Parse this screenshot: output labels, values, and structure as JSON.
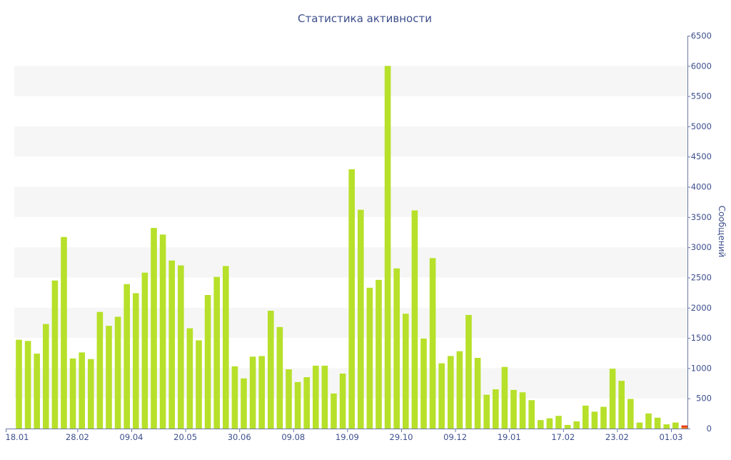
{
  "chart_data": {
    "type": "bar",
    "title": "Статистика активности",
    "xlabel": "",
    "ylabel": "Сообщений",
    "ylim": [
      0,
      6500
    ],
    "yticks": [
      0,
      500,
      1000,
      1500,
      2000,
      2500,
      3000,
      3500,
      4000,
      4500,
      5000,
      5500,
      6000,
      6500
    ],
    "y_axis_side": "right",
    "grid": "alternating horizontal bands",
    "x_tick_labels": [
      {
        "label": "18.01",
        "index": 0
      },
      {
        "label": "28.02",
        "index": 6
      },
      {
        "label": "09.04",
        "index": 12
      },
      {
        "label": "20.05",
        "index": 18
      },
      {
        "label": "30.06",
        "index": 24
      },
      {
        "label": "09.08",
        "index": 30
      },
      {
        "label": "19.09",
        "index": 36
      },
      {
        "label": "29.10",
        "index": 42
      },
      {
        "label": "09.12",
        "index": 48
      },
      {
        "label": "19.01",
        "index": 54
      },
      {
        "label": "17.02",
        "index": 60
      },
      {
        "label": "23.02",
        "index": 66
      },
      {
        "label": "01.03",
        "index": 72
      }
    ],
    "values": [
      1470,
      1450,
      1240,
      1730,
      2450,
      3170,
      1160,
      1260,
      1150,
      1930,
      1700,
      1850,
      2390,
      2240,
      2580,
      3320,
      3210,
      2780,
      2700,
      1660,
      1460,
      2210,
      2510,
      2690,
      1030,
      830,
      1190,
      1200,
      1950,
      1680,
      980,
      770,
      850,
      1040,
      1040,
      580,
      910,
      4290,
      3620,
      2330,
      2460,
      6000,
      2650,
      1900,
      3610,
      1490,
      2820,
      1080,
      1200,
      1280,
      1880,
      1170,
      560,
      650,
      1020,
      640,
      600,
      470,
      140,
      170,
      210,
      60,
      120,
      380,
      280,
      360,
      990,
      790,
      490,
      100,
      250,
      180,
      70,
      100,
      50
    ],
    "highlight_last": true,
    "colors": {
      "bar": "#b7e02a",
      "bar_last": "#f07a1a",
      "bar_last_top": "#e03020",
      "band": "#f6f6f6",
      "text": "#3d4f8c",
      "axis": "#6a78a8"
    }
  }
}
